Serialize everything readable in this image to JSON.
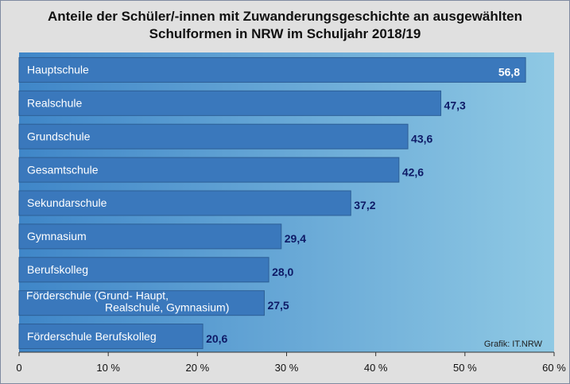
{
  "title": {
    "line1": "Anteile der Schüler/-innen mit Zuwanderungsgeschichte an ausgewählten",
    "line2": "Schulformen in NRW  im Schuljahr 2018/19"
  },
  "credit": "Grafik: IT.NRW",
  "colors": {
    "bar": "#3a78bc",
    "bar_edge": "#2d5f96",
    "value_label": "#0e1a66",
    "value_label_inside": "#ffffff",
    "plot_bg_left": "#3f86c8",
    "plot_bg_right": "#8fc9e4"
  },
  "chart_data": {
    "type": "bar",
    "orientation": "horizontal",
    "categories": [
      "Hauptschule",
      "Realschule",
      "Grundschule",
      "Gesamtschule",
      "Sekundarschule",
      "Gymnasium",
      "Berufskolleg",
      "Förderschule (Grund- Haupt, Realschule, Gymnasium)",
      "Förderschule Berufskolleg"
    ],
    "category_lines": [
      [
        "Hauptschule"
      ],
      [
        "Realschule"
      ],
      [
        "Grundschule"
      ],
      [
        "Gesamtschule"
      ],
      [
        "Sekundarschule"
      ],
      [
        "Gymnasium"
      ],
      [
        "Berufskolleg"
      ],
      [
        "Förderschule (Grund- Haupt,",
        "Realschule, Gymnasium)"
      ],
      [
        "Förderschule Berufskolleg"
      ]
    ],
    "values": [
      56.8,
      47.3,
      43.6,
      42.6,
      37.2,
      29.4,
      28.0,
      27.5,
      20.6
    ],
    "value_labels": [
      "56,8",
      "47,3",
      "43,6",
      "42,6",
      "37,2",
      "29,4",
      "28,0",
      "27,5",
      "20,6"
    ],
    "xlim": [
      0,
      60
    ],
    "x_ticks": [
      0,
      10,
      20,
      30,
      40,
      50,
      60
    ],
    "x_tick_labels": [
      "0",
      "10 %",
      "20 %",
      "30 %",
      "40 %",
      "50 %",
      "60 %"
    ],
    "grid": false,
    "legend": "none"
  }
}
